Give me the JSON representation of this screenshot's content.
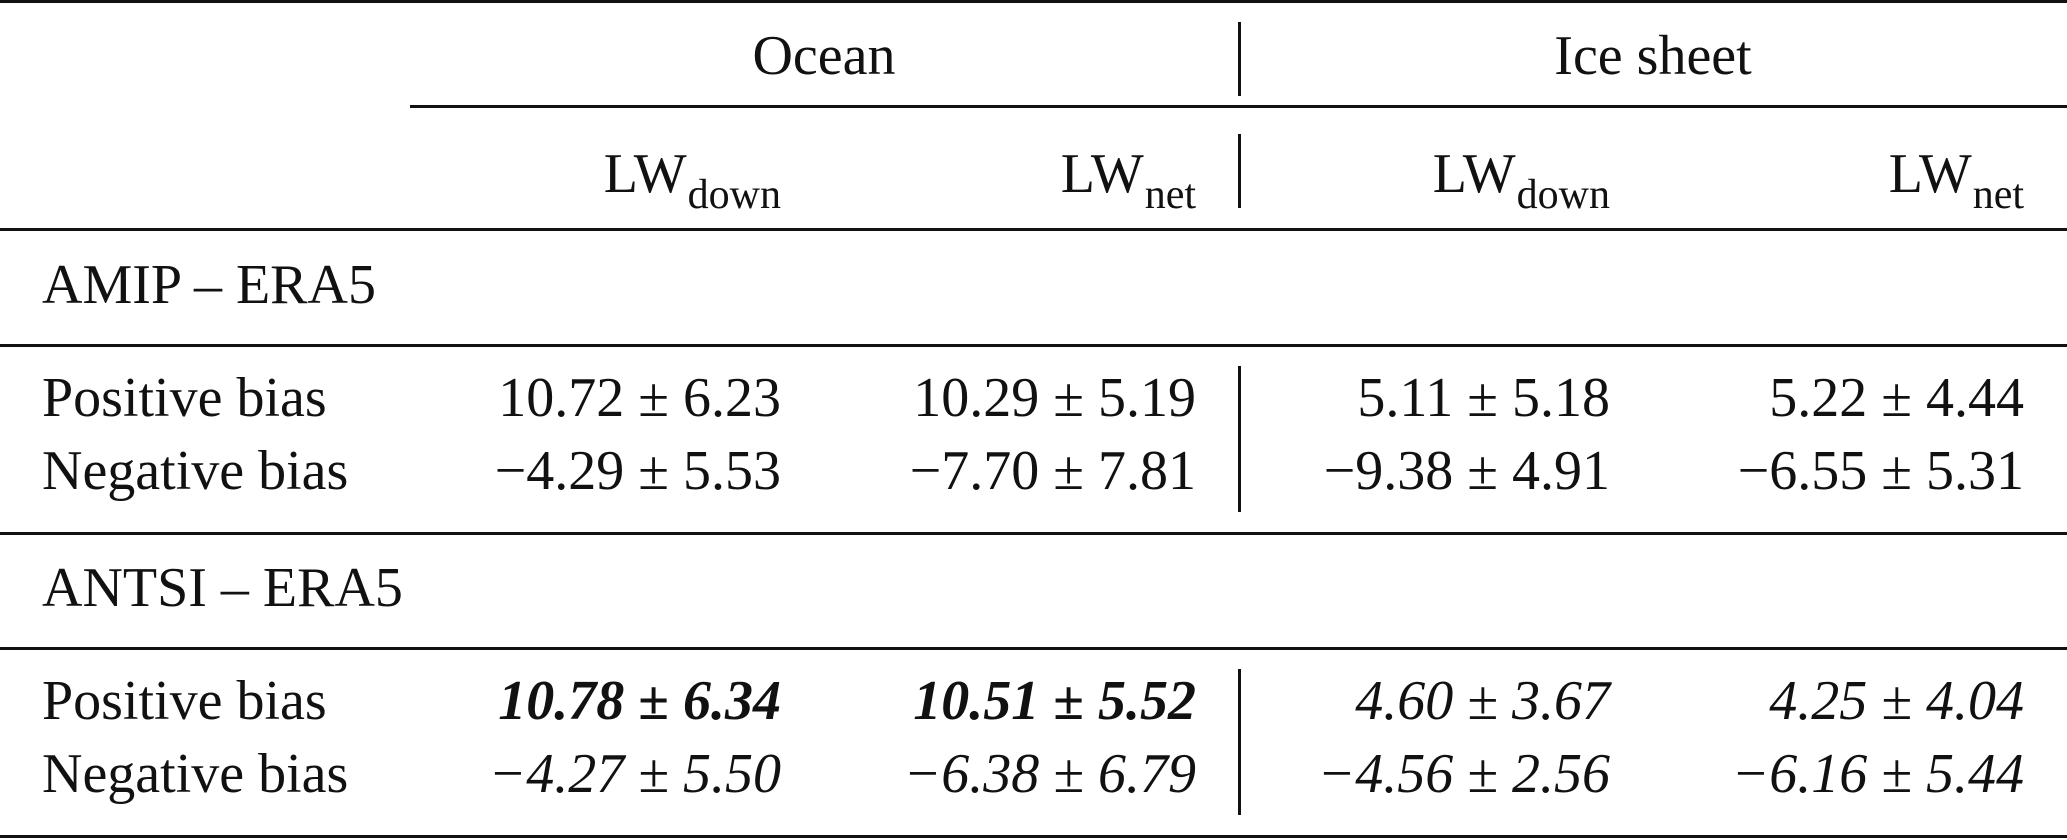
{
  "table": {
    "group_headers": [
      {
        "label": "Ocean"
      },
      {
        "label": "Ice sheet"
      }
    ],
    "column_headers": [
      {
        "base": "LW",
        "sub": "down"
      },
      {
        "base": "LW",
        "sub": "net"
      },
      {
        "base": "LW",
        "sub": "down"
      },
      {
        "base": "LW",
        "sub": "net"
      }
    ],
    "sections": [
      {
        "title": "AMIP – ERA5",
        "rows": [
          {
            "label": "Positive bias",
            "cells": [
              {
                "value": "10.72 ± 6.23",
                "style": "normal"
              },
              {
                "value": "10.29 ± 5.19",
                "style": "normal"
              },
              {
                "value": "5.11 ± 5.18",
                "style": "normal"
              },
              {
                "value": "5.22 ± 4.44",
                "style": "normal"
              }
            ]
          },
          {
            "label": "Negative bias",
            "cells": [
              {
                "value": "−4.29 ± 5.53",
                "style": "normal"
              },
              {
                "value": "−7.70 ± 7.81",
                "style": "normal"
              },
              {
                "value": "−9.38 ± 4.91",
                "style": "normal"
              },
              {
                "value": "−6.55 ± 5.31",
                "style": "normal"
              }
            ]
          }
        ]
      },
      {
        "title": "ANTSI – ERA5",
        "rows": [
          {
            "label": "Positive bias",
            "cells": [
              {
                "value": "10.78 ± 6.34",
                "style": "bold-italic"
              },
              {
                "value": "10.51 ± 5.52",
                "style": "bold-italic"
              },
              {
                "value": "4.60 ± 3.67",
                "style": "italic"
              },
              {
                "value": "4.25 ± 4.04",
                "style": "italic"
              }
            ]
          },
          {
            "label": "Negative bias",
            "cells": [
              {
                "value": "−4.27 ± 5.50",
                "style": "italic"
              },
              {
                "value": "−6.38 ± 6.79",
                "style": "italic"
              },
              {
                "value": "−4.56 ± 2.56",
                "style": "italic"
              },
              {
                "value": "−6.16 ± 5.44",
                "style": "italic"
              }
            ]
          }
        ]
      }
    ]
  }
}
